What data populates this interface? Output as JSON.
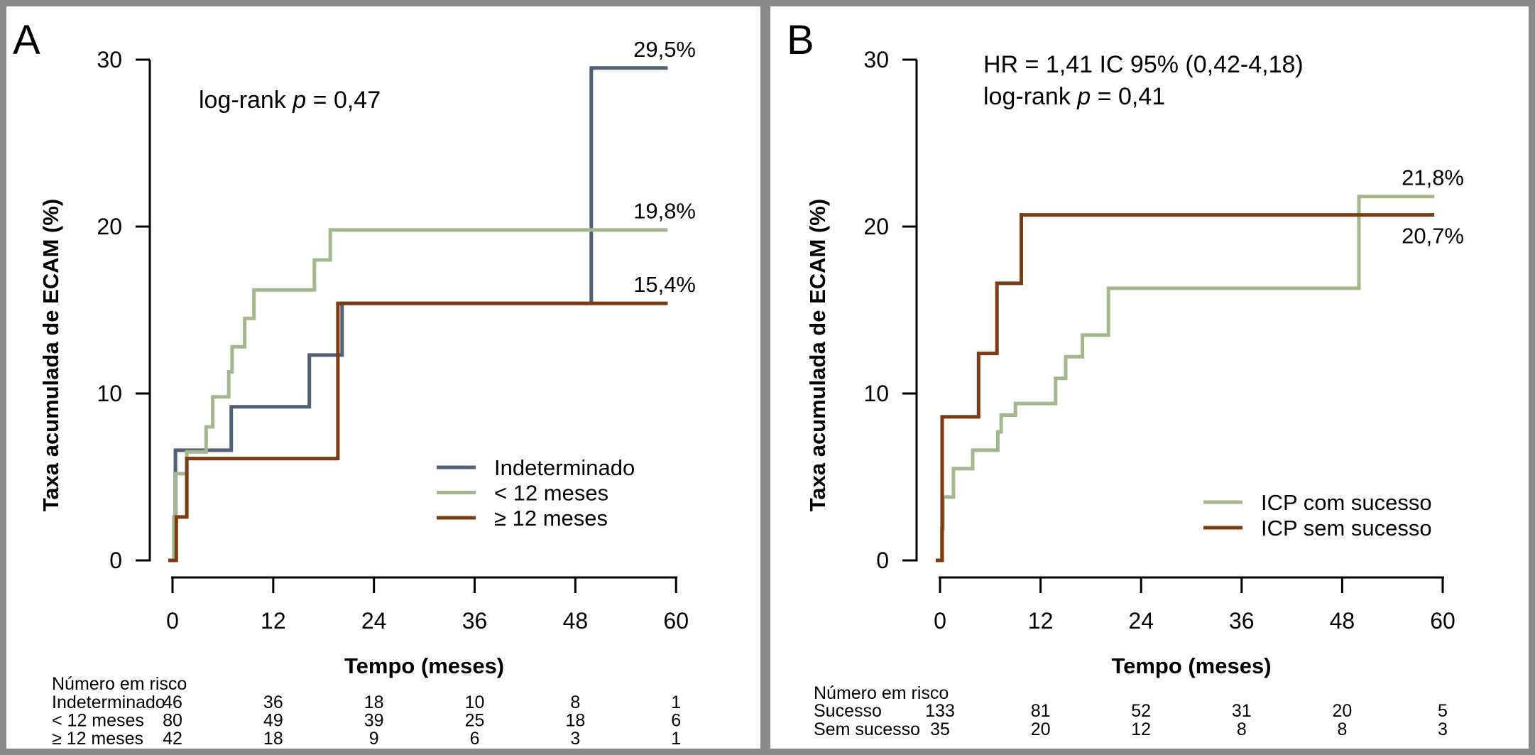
{
  "figure": {
    "background": "#ffffff",
    "frame_color": "#8a8a8a",
    "panel_letters": [
      "A",
      "B"
    ]
  },
  "chart_data": [
    {
      "panel_label": "A",
      "type": "line",
      "subtype": "kaplan-meier-cumulative-incidence-step",
      "stat_lines": [
        [
          {
            "t": "log-rank "
          },
          {
            "t": "p",
            "italic": true
          },
          {
            "t": " = 0,47"
          }
        ]
      ],
      "xlabel": "Tempo (meses)",
      "ylabel": "Taxa acumulada de ECAM (%)",
      "xlim": [
        0,
        60
      ],
      "ylim": [
        0,
        30
      ],
      "xticks": [
        "0",
        "12",
        "24",
        "36",
        "48",
        "60"
      ],
      "yticks": [
        "0",
        "10",
        "20",
        "30"
      ],
      "grid": false,
      "legend_position": "lower-right",
      "series": [
        {
          "name": "Indeterminado",
          "color": "#4f6078",
          "final_label": "29,5%",
          "label_side": "above",
          "steps": [
            [
              0.35,
              6.6
            ],
            [
              7.0,
              9.2
            ],
            [
              16.3,
              12.3
            ],
            [
              20.2,
              15.4
            ],
            [
              49.9,
              29.5
            ]
          ],
          "end_month": 59
        },
        {
          "name": "< 12 meses",
          "color": "#a2b88e",
          "final_label": "19,8%",
          "label_side": "above",
          "steps": [
            [
              0.15,
              2.6
            ],
            [
              0.3,
              5.2
            ],
            [
              1.7,
              6.5
            ],
            [
              4.0,
              8.0
            ],
            [
              4.8,
              9.8
            ],
            [
              6.7,
              11.3
            ],
            [
              7.1,
              12.8
            ],
            [
              8.6,
              14.5
            ],
            [
              9.7,
              16.2
            ],
            [
              16.9,
              18.0
            ],
            [
              18.8,
              19.8
            ]
          ],
          "end_month": 59
        },
        {
          "name": "≥ 12 meses",
          "color": "#7c3b12",
          "final_label": "15,4%",
          "label_side": "above",
          "steps": [
            [
              0.45,
              2.6
            ],
            [
              1.7,
              6.1
            ],
            [
              19.7,
              15.4
            ]
          ],
          "end_month": 59
        }
      ],
      "risk_table": {
        "title": "Número em risco",
        "rows": [
          {
            "label": "Indeterminado",
            "values": [
              "46",
              "36",
              "18",
              "10",
              "8",
              "1"
            ]
          },
          {
            "label": "< 12 meses",
            "values": [
              "80",
              "49",
              "39",
              "25",
              "18",
              "6"
            ]
          },
          {
            "label": "≥ 12 meses",
            "values": [
              "42",
              "18",
              "9",
              "6",
              "3",
              "1"
            ]
          }
        ]
      }
    },
    {
      "panel_label": "B",
      "type": "line",
      "subtype": "kaplan-meier-cumulative-incidence-step",
      "stat_lines": [
        [
          {
            "t": "HR = 1,41 IC 95% (0,42-4,18)"
          }
        ],
        [
          {
            "t": "log-rank "
          },
          {
            "t": "p",
            "italic": true
          },
          {
            "t": " = 0,41"
          }
        ]
      ],
      "xlabel": "Tempo (meses)",
      "ylabel": "Taxa acumulada de ECAM (%)",
      "xlim": [
        0,
        60
      ],
      "ylim": [
        0,
        30
      ],
      "xticks": [
        "0",
        "12",
        "24",
        "36",
        "48",
        "60"
      ],
      "yticks": [
        "0",
        "10",
        "20",
        "30"
      ],
      "grid": false,
      "legend_position": "lower-right",
      "series": [
        {
          "name": "ICP com sucesso",
          "color": "#a2b88e",
          "final_label": "21,8%",
          "label_side": "above",
          "steps": [
            [
              0.2,
              1.9
            ],
            [
              0.35,
              3.8
            ],
            [
              1.6,
              5.5
            ],
            [
              3.9,
              6.6
            ],
            [
              6.9,
              7.7
            ],
            [
              7.3,
              8.7
            ],
            [
              9.0,
              9.4
            ],
            [
              13.8,
              10.9
            ],
            [
              15.0,
              12.2
            ],
            [
              17.0,
              13.5
            ],
            [
              20.1,
              16.3
            ],
            [
              50.0,
              21.8
            ]
          ],
          "end_month": 59
        },
        {
          "name": "ICP sem sucesso",
          "color": "#7c3b12",
          "final_label": "20,7%",
          "label_side": "below",
          "steps": [
            [
              0.25,
              8.6
            ],
            [
              4.6,
              12.4
            ],
            [
              6.8,
              16.6
            ],
            [
              9.7,
              20.7
            ]
          ],
          "end_month": 59
        }
      ],
      "risk_table": {
        "title": "Número em risco",
        "rows": [
          {
            "label": "Sucesso",
            "values": [
              "133",
              "81",
              "52",
              "31",
              "20",
              "5"
            ]
          },
          {
            "label": "Sem sucesso",
            "values": [
              "35",
              "20",
              "12",
              "8",
              "8",
              "3"
            ]
          }
        ]
      }
    }
  ]
}
